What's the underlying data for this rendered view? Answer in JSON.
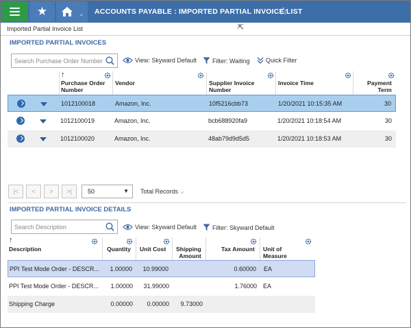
{
  "topbar": {
    "title": "ACCOUNTS PAYABLE : IMPORTED PARTIAL INVOICE LIST",
    "home_chevron": "⌄",
    "colors": {
      "bar": "#3e6ea8",
      "menu": "#2e9a48"
    }
  },
  "breadcrumb": "Imported Partial Invoice List",
  "invoices": {
    "title": "IMPORTED PARTIAL INVOICES",
    "search_placeholder": "Search Purchase Order Number",
    "view_label": "View: Skyward Default",
    "filter_label": "Filter: Waiting",
    "quick_filter_label": "Quick Filter",
    "sort_arrow": "↑",
    "columns": {
      "po": [
        "Purchase Order",
        "Number"
      ],
      "vendor": "Vendor",
      "supplier": [
        "Supplier Invoice",
        "Number"
      ],
      "time": "Invoice Time",
      "payment": [
        "Payment",
        "Term"
      ]
    },
    "rows": [
      {
        "po": "1012100018",
        "vendor": "Amazon, Inc.",
        "supplier": "10f5216cbb73",
        "time": "1/20/2021 10:15:35 AM",
        "payment": "30"
      },
      {
        "po": "1012100019",
        "vendor": "Amazon, Inc.",
        "supplier": "bcb688920fa9",
        "time": "1/20/2021 10:18:54 AM",
        "payment": "30"
      },
      {
        "po": "1012100020",
        "vendor": "Amazon, Inc.",
        "supplier": "48ab79d9d5d5",
        "time": "1/20/2021 10:18:53 AM",
        "payment": "30"
      }
    ]
  },
  "pagination": {
    "first": "|<",
    "prev": "<",
    "next": ">",
    "last": ">|",
    "page_size": "50",
    "total_records_label": "Total Records"
  },
  "details": {
    "title": "IMPORTED PARTIAL INVOICE DETAILS",
    "search_placeholder": "Search Description",
    "view_label": "View: Skyward Default",
    "filter_label": "Filter: Skyward Default",
    "sort_arrow": "↑",
    "columns": {
      "description": "Description",
      "quantity": "Quantity",
      "unit_cost": "Unit Cost",
      "shipping": [
        "Shipping",
        "Amount"
      ],
      "tax": "Tax Amount",
      "uom": [
        "Unit of",
        "Measure"
      ]
    },
    "rows": [
      {
        "description": "PPI Test Mode Order - DESCR...",
        "quantity": "1.00000",
        "unit_cost": "10.99000",
        "shipping": "",
        "tax": "0.60000",
        "uom": "EA"
      },
      {
        "description": "PPI Test Mode Order - DESCR...",
        "quantity": "1.00000",
        "unit_cost": "31.99000",
        "shipping": "",
        "tax": "1.76000",
        "uom": "EA"
      },
      {
        "description": "Shipping Charge",
        "quantity": "0.00000",
        "unit_cost": "0.00000",
        "shipping": "9.73000",
        "tax": "",
        "uom": ""
      }
    ]
  }
}
